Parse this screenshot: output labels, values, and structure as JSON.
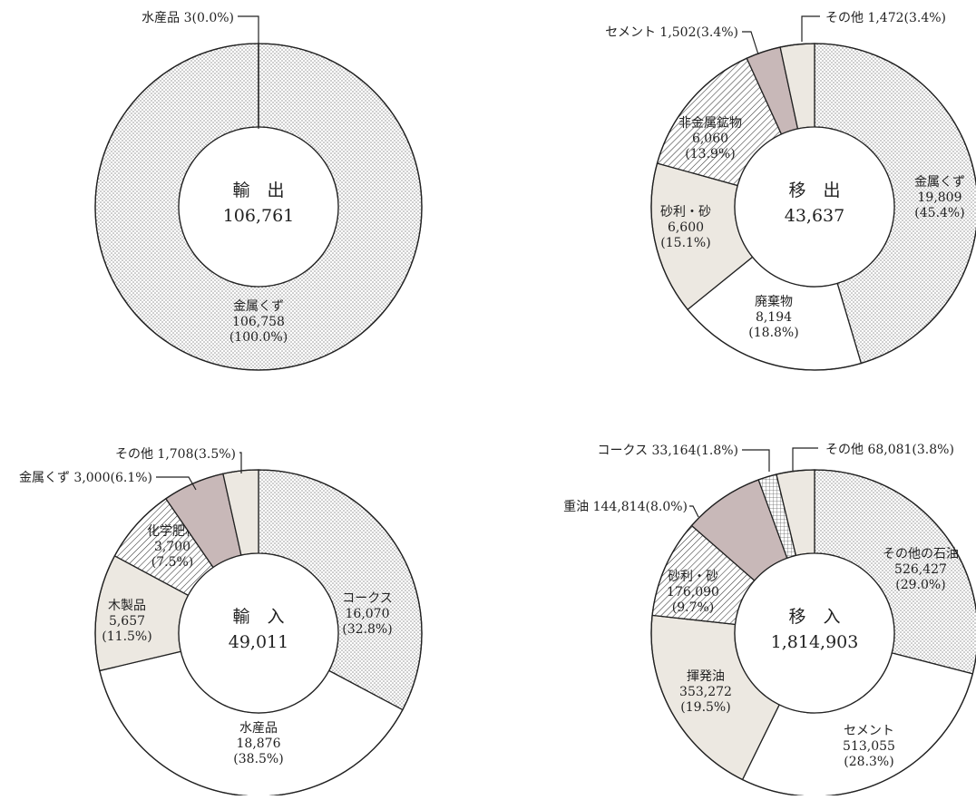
{
  "chart_data": [
    {
      "type": "donut",
      "title": "輸 出",
      "total": "106,761",
      "slices": [
        {
          "name": "金属くず",
          "value": 106758,
          "value_label": "106,758",
          "pct": "(100.0%)",
          "fill": "dots"
        },
        {
          "name": "水産品",
          "value": 3,
          "value_label": "3",
          "pct": "(0.0%)",
          "fill": "white"
        }
      ],
      "callouts": [
        {
          "text": "水産品 3(0.0%)"
        }
      ]
    },
    {
      "type": "donut",
      "title": "移 出",
      "total": "43,637",
      "slices": [
        {
          "name": "金属くず",
          "value": 19809,
          "value_label": "19,809",
          "pct": "(45.4%)",
          "fill": "dots"
        },
        {
          "name": "廃棄物",
          "value": 8194,
          "value_label": "8,194",
          "pct": "(18.8%)",
          "fill": "white"
        },
        {
          "name": "砂利・砂",
          "value": 6600,
          "value_label": "6,600",
          "pct": "(15.1%)",
          "fill": "beige"
        },
        {
          "name": "非金属鉱物",
          "value": 6060,
          "value_label": "6,060",
          "pct": "(13.9%)",
          "fill": "hatch"
        },
        {
          "name": "セメント",
          "value": 1502,
          "value_label": "1,502",
          "pct": "(3.4%)",
          "fill": "mauve"
        },
        {
          "name": "その他",
          "value": 1472,
          "value_label": "1,472",
          "pct": "(3.4%)",
          "fill": "beige"
        }
      ],
      "callouts": [
        {
          "text": "セメント 1,502(3.4%)"
        },
        {
          "text": "その他 1,472(3.4%)"
        }
      ]
    },
    {
      "type": "donut",
      "title": "輸 入",
      "total": "49,011",
      "slices": [
        {
          "name": "コークス",
          "value": 16070,
          "value_label": "16,070",
          "pct": "(32.8%)",
          "fill": "dots"
        },
        {
          "name": "水産品",
          "value": 18876,
          "value_label": "18,876",
          "pct": "(38.5%)",
          "fill": "white"
        },
        {
          "name": "木製品",
          "value": 5657,
          "value_label": "5,657",
          "pct": "(11.5%)",
          "fill": "beige"
        },
        {
          "name": "化学肥料",
          "value": 3700,
          "value_label": "3,700",
          "pct": "(7.5%)",
          "fill": "hatch"
        },
        {
          "name": "金属くず",
          "value": 3000,
          "value_label": "3,000",
          "pct": "(6.1%)",
          "fill": "mauve"
        },
        {
          "name": "その他",
          "value": 1708,
          "value_label": "1,708",
          "pct": "(3.5%)",
          "fill": "beige"
        }
      ],
      "callouts": [
        {
          "text": "その他 1,708(3.5%)"
        },
        {
          "text": "金属くず 3,000(6.1%)"
        }
      ]
    },
    {
      "type": "donut",
      "title": "移 入",
      "total": "1,814,903",
      "slices": [
        {
          "name": "その他の石油",
          "value": 526427,
          "value_label": "526,427",
          "pct": "(29.0%)",
          "fill": "dots"
        },
        {
          "name": "セメント",
          "value": 513055,
          "value_label": "513,055",
          "pct": "(28.3%)",
          "fill": "white"
        },
        {
          "name": "揮発油",
          "value": 353272,
          "value_label": "353,272",
          "pct": "(19.5%)",
          "fill": "beige"
        },
        {
          "name": "砂利・砂",
          "value": 176090,
          "value_label": "176,090",
          "pct": "(9.7%)",
          "fill": "hatch"
        },
        {
          "name": "重油",
          "value": 144814,
          "value_label": "144,814",
          "pct": "(8.0%)",
          "fill": "mauve"
        },
        {
          "name": "コークス",
          "value": 33164,
          "value_label": "33,164",
          "pct": "(1.8%)",
          "fill": "grid"
        },
        {
          "name": "その他",
          "value": 68081,
          "value_label": "68,081",
          "pct": "(3.8%)",
          "fill": "beige"
        }
      ],
      "callouts": [
        {
          "text": "コークス 33,164(1.8%)"
        },
        {
          "text": "その他 68,081(3.8%)"
        },
        {
          "text": "重油 144,814(8.0%)"
        }
      ]
    }
  ],
  "colors": {
    "dots_bg": "#ffffff",
    "dots_fg": "#8f8f8f",
    "beige": "#ece8e1",
    "mauve": "#c8b8b8",
    "hatch_bg": "#ffffff",
    "hatch_fg": "#333333",
    "stroke": "#222222"
  }
}
